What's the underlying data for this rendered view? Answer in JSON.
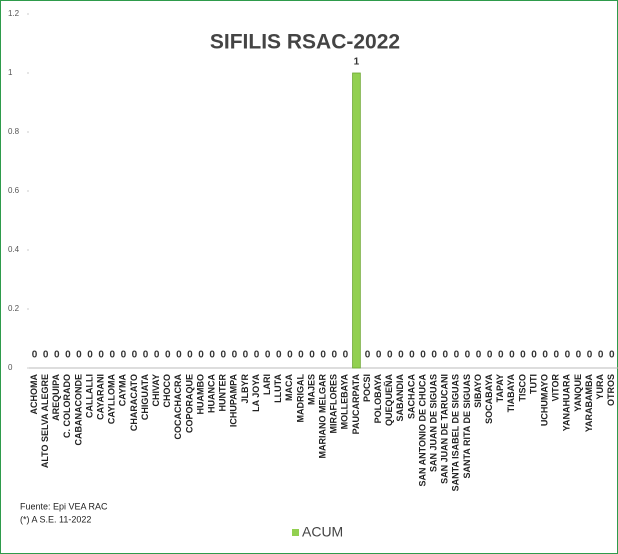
{
  "chart_data": {
    "type": "bar",
    "title": "SIFILIS RSAC-2022",
    "categories": [
      "ACHOMA",
      "ALTO SELVA ALEGRE",
      "AREQUIPA",
      "C. COLORADO",
      "CABANACONDE",
      "CALLALLI",
      "CAYARANI",
      "CAYLLOMA",
      "CAYMA",
      "CHARACATO",
      "CHIGUATA",
      "CHIVAY",
      "CHOCO",
      "COCACHACRA",
      "COPORAQUE",
      "HUAMBO",
      "HUANCA",
      "HUNTER",
      "ICHUPAMPA",
      "JLBYR",
      "LA JOYA",
      "LARI",
      "LLUTA",
      "MACA",
      "MADRIGAL",
      "MAJES",
      "MARIANO MELGAR",
      "MIRAFLORES",
      "MOLLEBAYA",
      "PAUCARPATA",
      "POCSI",
      "POLOBAYA",
      "QUEQUEÑA",
      "SABANDIA",
      "SACHACA",
      "SAN ANTONIO DE CHUCA",
      "SAN JUAN DE SIGUAS",
      "SAN JUAN DE TARUCANI",
      "SANTA ISABEL DE SIGUAS",
      "SANTA RITA DE SIGUAS",
      "SIBAYO",
      "SOCABAYA",
      "TAPAY",
      "TIABAYA",
      "TISCO",
      "TUTI",
      "UCHUMAYO",
      "VITOR",
      "YANAHUARA",
      "YANQUE",
      "YARABAMBA",
      "YURA",
      "OTROS"
    ],
    "series": [
      {
        "name": "ACUM",
        "color": "#92d050",
        "values": [
          0,
          0,
          0,
          0,
          0,
          0,
          0,
          0,
          0,
          0,
          0,
          0,
          0,
          0,
          0,
          0,
          0,
          0,
          0,
          0,
          0,
          0,
          0,
          0,
          0,
          0,
          0,
          0,
          0,
          1,
          0,
          0,
          0,
          0,
          0,
          0,
          0,
          0,
          0,
          0,
          0,
          0,
          0,
          0,
          0,
          0,
          0,
          0,
          0,
          0,
          0,
          0,
          0
        ]
      }
    ],
    "ylim": [
      0,
      1.2
    ],
    "yticks": [
      0,
      0.2,
      0.4,
      0.6,
      0.8,
      1,
      1.2
    ],
    "grid": false,
    "legend": "bottom",
    "annotations": [
      "Fuente: Epi VEA RAC",
      "(*) A S.E. 11-2022"
    ]
  }
}
